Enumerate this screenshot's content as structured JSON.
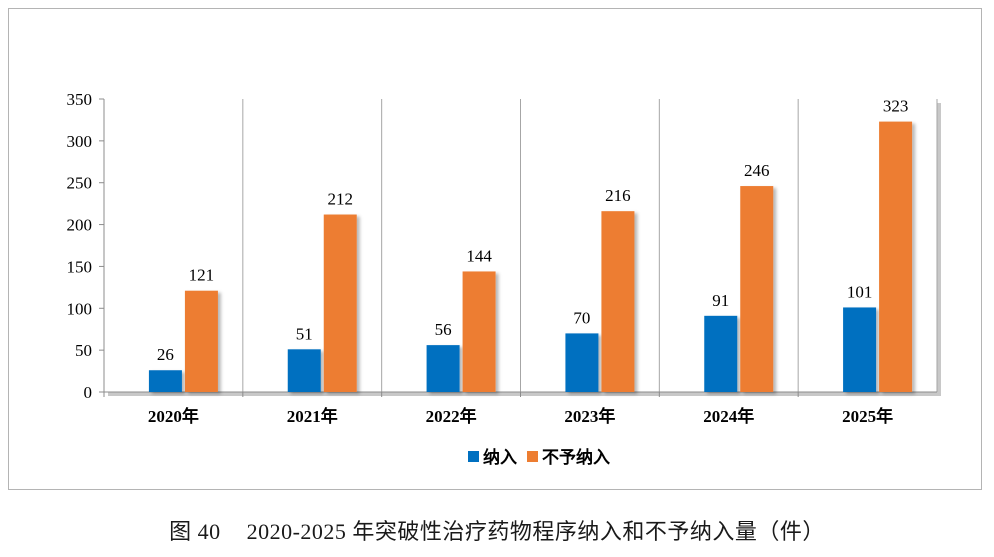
{
  "chart_data": {
    "type": "bar",
    "categories": [
      "2020年",
      "2021年",
      "2022年",
      "2023年",
      "2024年",
      "2025年"
    ],
    "series": [
      {
        "name": "纳入",
        "color": "#0070C0",
        "values": [
          26,
          51,
          56,
          70,
          91,
          101
        ]
      },
      {
        "name": "不予纳入",
        "color": "#ED7D31",
        "values": [
          121,
          212,
          144,
          216,
          246,
          323
        ]
      }
    ],
    "ylim": [
      0,
      350
    ],
    "yticks": [
      0,
      50,
      100,
      150,
      200,
      250,
      300,
      350
    ],
    "grid": "vertical category separators",
    "legend_position": "bottom-center",
    "data_labels": true
  },
  "caption": {
    "number": "图 40",
    "text": "2020-2025 年突破性治疗药物程序纳入和不予纳入量（件）"
  }
}
